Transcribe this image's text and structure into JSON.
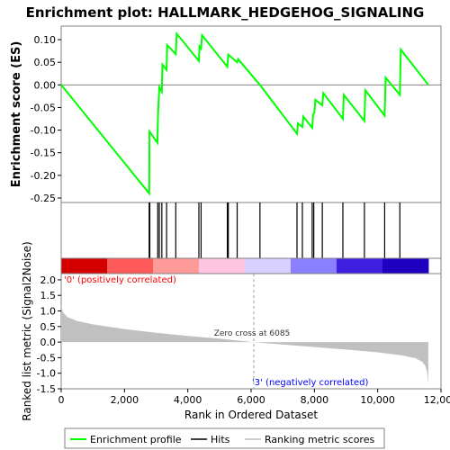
{
  "chart_data": {
    "type": "line",
    "title": "Enrichment plot: HALLMARK_HEDGEHOG_SIGNALING",
    "xlabel": "Rank in Ordered Dataset",
    "x_ticks": [
      0,
      2000,
      4000,
      6000,
      8000,
      10000,
      12000
    ],
    "x_tick_labels": [
      "0",
      "2,000",
      "4,000",
      "6,000",
      "8,000",
      "10,000",
      "12,000"
    ],
    "xlim": [
      0,
      12000
    ],
    "n_genes": 11600,
    "es_panel": {
      "ylabel": "Enrichment score (ES)",
      "ylim": [
        -0.26,
        0.13
      ],
      "y_ticks": [
        -0.25,
        -0.2,
        -0.15,
        -0.1,
        -0.05,
        0.0,
        0.05,
        0.1
      ],
      "y_tick_labels": [
        "-0.25",
        "-0.20",
        "-0.15",
        "-0.10",
        "-0.05",
        "0.00",
        "0.05",
        "0.10"
      ],
      "series_color": "#00ff00",
      "x": [
        0,
        2780,
        2790,
        3040,
        3060,
        3100,
        3180,
        3200,
        3330,
        3350,
        3620,
        3650,
        4350,
        4370,
        4420,
        4450,
        5250,
        5280,
        5560,
        5590,
        6280,
        7450,
        7480,
        7620,
        7650,
        7930,
        7960,
        8000,
        8030,
        8250,
        8280,
        8900,
        8930,
        9580,
        9610,
        10220,
        10250,
        10700,
        10730,
        11600
      ],
      "y": [
        0.0,
        -0.24,
        -0.103,
        -0.128,
        -0.065,
        -0.005,
        -0.015,
        0.045,
        0.033,
        0.088,
        0.068,
        0.113,
        0.053,
        0.085,
        0.08,
        0.11,
        0.04,
        0.067,
        0.05,
        0.057,
        0.0,
        -0.108,
        -0.085,
        -0.093,
        -0.07,
        -0.095,
        -0.065,
        -0.062,
        -0.033,
        -0.045,
        -0.018,
        -0.075,
        -0.022,
        -0.08,
        -0.012,
        -0.068,
        0.016,
        -0.022,
        0.078,
        0.0
      ]
    },
    "hits": [
      2780,
      2800,
      3050,
      3100,
      3180,
      3330,
      3620,
      4350,
      4420,
      5250,
      5280,
      5560,
      6280,
      7450,
      7620,
      7930,
      7980,
      8250,
      8900,
      9580,
      10220,
      10700
    ],
    "rank_panel": {
      "ylabel": "Ranked list metric (Signal2Noise)",
      "ylim": [
        -1.5,
        2.2
      ],
      "y_ticks": [
        -1.5,
        -1.0,
        -0.5,
        0.0,
        0.5,
        1.0,
        1.5,
        2.0
      ],
      "y_tick_labels": [
        "-1.5",
        "-1.0",
        "-0.5",
        "0.0",
        "0.5",
        "1.0",
        "1.5",
        "2.0"
      ],
      "fill_color": "#c0c0c0",
      "metric_x": [
        0,
        60,
        200,
        500,
        1000,
        2000,
        3000,
        4000,
        5000,
        6085,
        7000,
        8000,
        9000,
        10000,
        10800,
        11200,
        11400,
        11500,
        11560,
        11600
      ],
      "metric_y": [
        1.2,
        0.95,
        0.8,
        0.68,
        0.57,
        0.42,
        0.3,
        0.2,
        0.11,
        0.0,
        -0.08,
        -0.16,
        -0.24,
        -0.33,
        -0.43,
        -0.52,
        -0.63,
        -0.75,
        -0.95,
        -1.35
      ],
      "zero_cross_rank": 6085,
      "zero_cross_label": "Zero cross at 6085",
      "pos_label": "'0' (positively correlated)",
      "neg_label": "'3' (negatively correlated)",
      "pos_label_color": "#ff0000",
      "neg_label_color": "#0000ff"
    },
    "legend": {
      "placement": "bottom",
      "entries": [
        {
          "name": "Enrichment profile",
          "color": "#00ff00",
          "style": "line"
        },
        {
          "name": "Hits",
          "color": "#000000",
          "style": "line"
        },
        {
          "name": "Ranking metric scores",
          "color": "#c0c0c0",
          "style": "line"
        }
      ]
    },
    "heatmap_colors": [
      "#d40000",
      "#ff5a5a",
      "#ff9a9a",
      "#ffc4e0",
      "#d8d0ff",
      "#8a80ff",
      "#4020e0",
      "#2000c0"
    ]
  }
}
